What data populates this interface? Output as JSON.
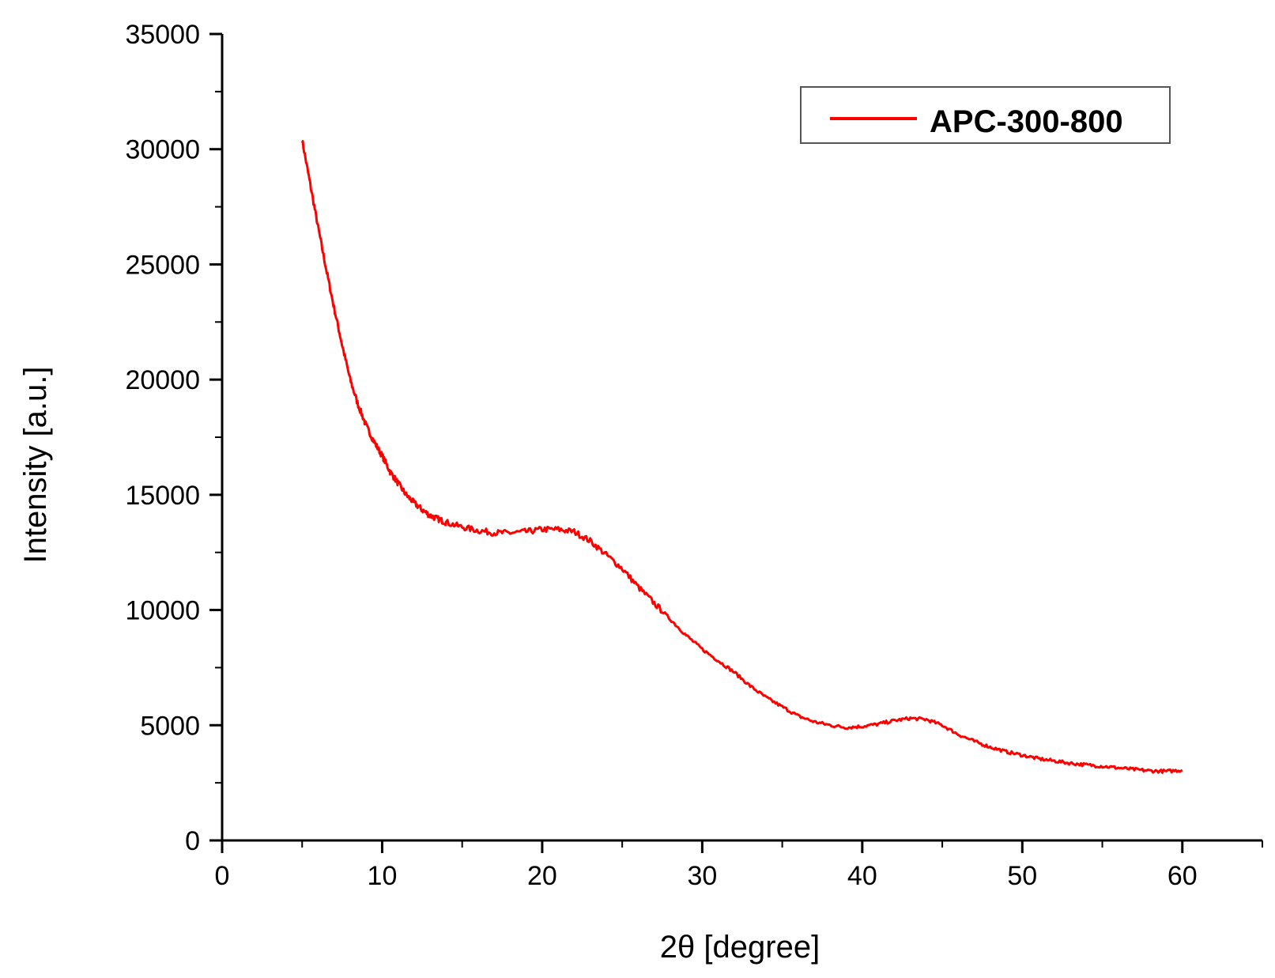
{
  "chart_data": {
    "type": "line",
    "title": "",
    "xlabel": "2θ [degree]",
    "ylabel": "Intensity [a.u.]",
    "xlim": [
      0,
      65
    ],
    "ylim": [
      0,
      35000
    ],
    "x_ticks": [
      "0",
      "10",
      "20",
      "30",
      "40",
      "50",
      "60"
    ],
    "y_ticks": [
      "0",
      "5000",
      "10000",
      "15000",
      "20000",
      "25000",
      "30000",
      "35000"
    ],
    "grid": false,
    "legend_position": "top-right",
    "series": [
      {
        "name": "APC-300-800",
        "color": "#ff0000",
        "x": [
          5,
          5.5,
          6,
          6.5,
          7,
          7.5,
          8,
          8.5,
          9,
          9.5,
          10,
          10.5,
          11,
          11.5,
          12,
          12.5,
          13,
          13.5,
          14,
          15,
          16,
          17,
          18,
          19,
          20,
          21,
          22,
          23,
          24,
          25,
          26,
          27,
          28,
          29,
          30,
          31,
          32,
          33,
          34,
          35,
          36,
          37,
          38,
          39,
          40,
          41,
          42,
          43,
          44,
          45,
          46,
          47,
          48,
          49,
          50,
          51,
          52,
          53,
          54,
          55,
          56,
          57,
          58,
          59,
          60
        ],
        "values": [
          30400,
          28500,
          26600,
          24800,
          23100,
          21500,
          20000,
          18900,
          18000,
          17300,
          16700,
          16000,
          15500,
          15000,
          14650,
          14350,
          14100,
          13950,
          13800,
          13600,
          13450,
          13350,
          13350,
          13400,
          13500,
          13500,
          13400,
          13000,
          12400,
          11800,
          11000,
          10300,
          9600,
          8900,
          8300,
          7800,
          7300,
          6700,
          6200,
          5800,
          5400,
          5150,
          5000,
          4900,
          4950,
          5050,
          5200,
          5300,
          5250,
          5000,
          4600,
          4300,
          4050,
          3850,
          3700,
          3550,
          3450,
          3350,
          3280,
          3220,
          3150,
          3080,
          3020,
          3000,
          3050
        ]
      }
    ]
  }
}
